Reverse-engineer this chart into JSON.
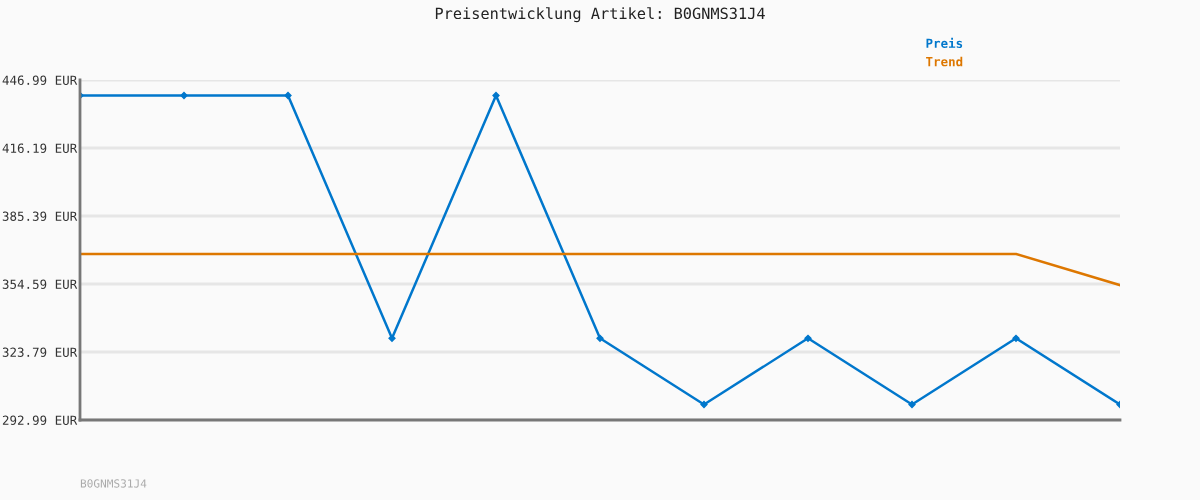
{
  "chart_data": {
    "type": "line",
    "title": "Preisentwicklung Artikel: B0GNMS31J4",
    "categories": [
      null,
      null,
      null,
      null,
      null,
      null,
      null,
      null,
      null,
      null,
      null
    ],
    "series": [
      {
        "name": "Preis",
        "color": "#0077cc",
        "values": [
          439.99,
          439.99,
          439.99,
          329.99,
          439.99,
          329.99,
          299.99,
          329.99,
          299.99,
          329.99,
          299.99
        ],
        "marker": "diamond"
      },
      {
        "name": "Trend",
        "color": "#dd7700",
        "values": [
          368.2,
          368.2,
          368.2,
          368.2,
          368.2,
          368.2,
          368.2,
          368.2,
          368.2,
          368.2,
          354.1
        ]
      }
    ],
    "ylim": [
      292.99,
      446.99
    ],
    "yticks": [
      {
        "value": 292.99,
        "label": "292.99 EUR"
      },
      {
        "value": 323.79,
        "label": "323.79 EUR"
      },
      {
        "value": 354.59,
        "label": "354.59 EUR"
      },
      {
        "value": 385.39,
        "label": "385.39 EUR"
      },
      {
        "value": 416.19,
        "label": "416.19 EUR"
      },
      {
        "value": 446.99,
        "label": "446.99 EUR"
      }
    ],
    "grid": "y",
    "legend": "top right",
    "annotations": [
      "B0GNMS31J4"
    ]
  }
}
